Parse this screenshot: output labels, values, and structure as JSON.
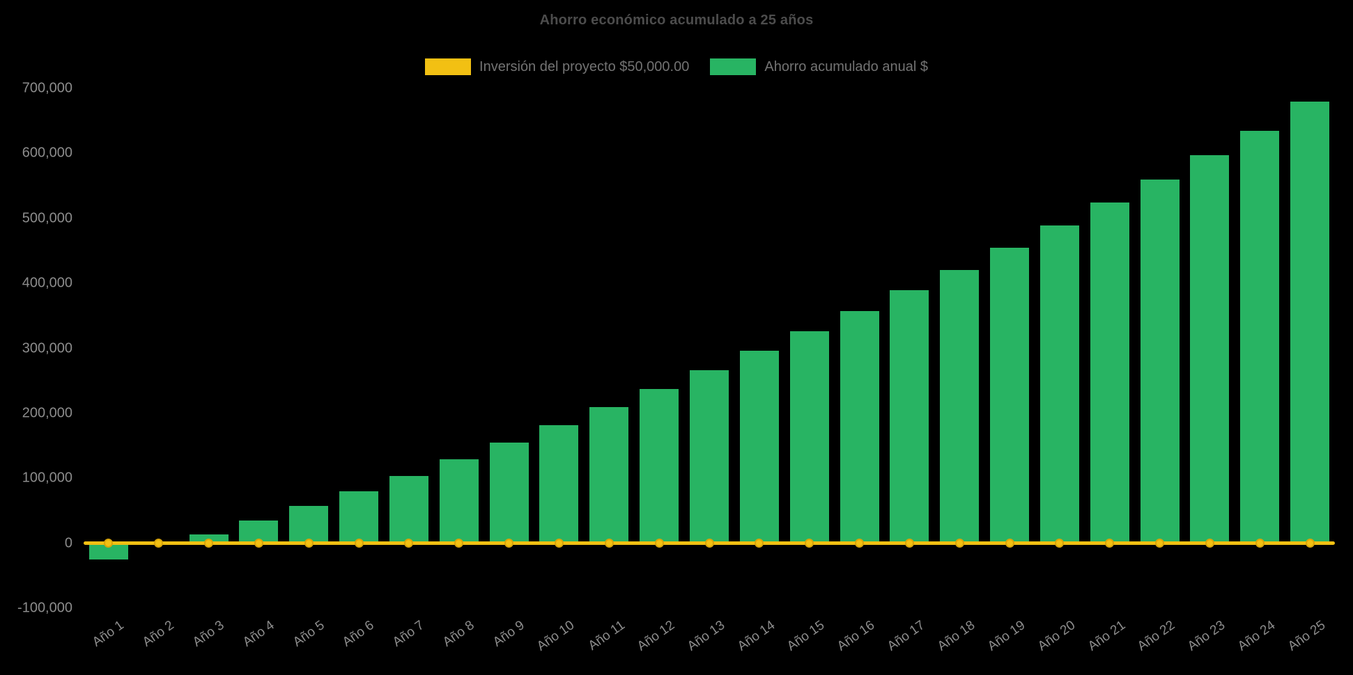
{
  "chart_data": {
    "type": "bar",
    "title": "Ahorro económico acumulado a 25 años",
    "background": "#000000",
    "grid": false,
    "legend_position": "top",
    "categories": [
      "Año 1",
      "Año 2",
      "Año 3",
      "Año 4",
      "Año 5",
      "Año 6",
      "Año 7",
      "Año 8",
      "Año 9",
      "Año 10",
      "Año 11",
      "Año 12",
      "Año 13",
      "Año 14",
      "Año 15",
      "Año 16",
      "Año 17",
      "Año 18",
      "Año 19",
      "Año 20",
      "Año 21",
      "Año 22",
      "Año 23",
      "Año 24",
      "Año 25"
    ],
    "series": [
      {
        "name": "Inversión del proyecto $50,000.00",
        "type": "line",
        "color": "#f2c013",
        "point_border_color": "#d9a50a",
        "values": [
          0,
          0,
          0,
          0,
          0,
          0,
          0,
          0,
          0,
          0,
          0,
          0,
          0,
          0,
          0,
          0,
          0,
          0,
          0,
          0,
          0,
          0,
          0,
          0,
          0
        ]
      },
      {
        "name": "Ahorro acumulado anual $",
        "type": "bar",
        "color": "#28b463",
        "values": [
          -25000,
          -3000,
          14000,
          35000,
          57000,
          80000,
          104000,
          129000,
          155000,
          182000,
          210000,
          237000,
          266000,
          296000,
          326000,
          357000,
          389000,
          421000,
          455000,
          489000,
          524000,
          560000,
          597000,
          635000,
          680000
        ]
      }
    ],
    "ylim": [
      -100000,
      700000
    ],
    "ytick_step": 100000,
    "ylabel": "",
    "xlabel": ""
  }
}
